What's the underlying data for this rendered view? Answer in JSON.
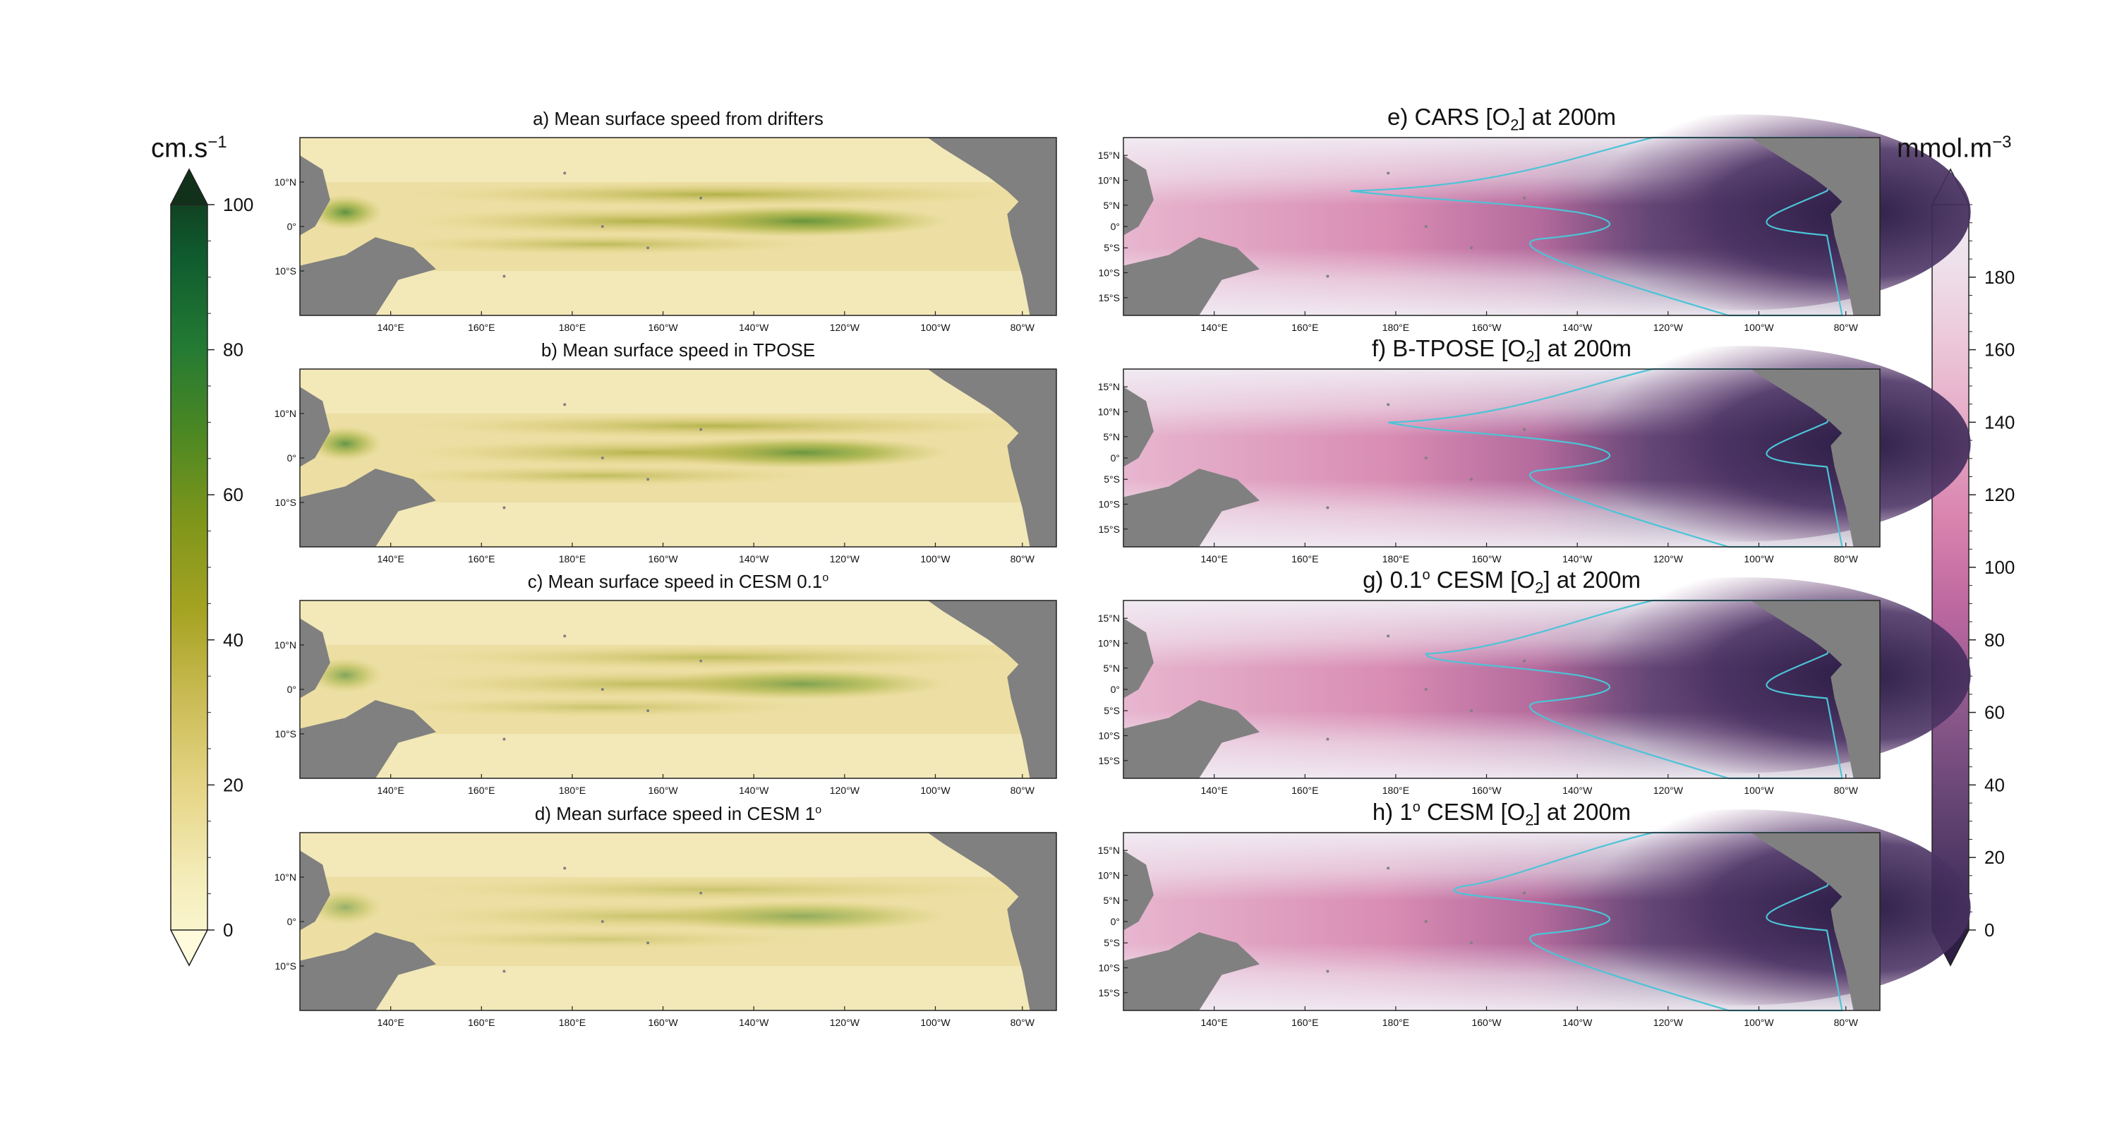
{
  "figure": {
    "colorbar_left": {
      "unit_main": "cm.s",
      "unit_exp": "−1",
      "ticks": [
        "0",
        "20",
        "40",
        "60",
        "80",
        "100"
      ],
      "range": [
        0,
        100
      ],
      "colors": [
        "#fffbdc",
        "#f4ecb9",
        "#e6d586",
        "#cbbc56",
        "#a6a322",
        "#7f961b",
        "#4d8823",
        "#237a33",
        "#0f5c2f",
        "#12311b"
      ]
    },
    "colorbar_right": {
      "unit_main": "mmol.m",
      "unit_exp": "−3",
      "ticks": [
        "0",
        "20",
        "40",
        "60",
        "80",
        "100",
        "120",
        "140",
        "160",
        "180"
      ],
      "range": [
        0,
        200
      ],
      "colors": [
        "#2d1e45",
        "#4a3462",
        "#6b4877",
        "#915a8e",
        "#bb679f",
        "#d882ae",
        "#e4a6c3",
        "#ecc6d8",
        "#eee2ec",
        "#f2f0f6"
      ]
    },
    "lon_labels": [
      "140°E",
      "160°E",
      "180°E",
      "160°W",
      "140°W",
      "120°W",
      "100°W",
      "80°W"
    ],
    "lat_labels_left": [
      "10°N",
      "0°",
      "10°S"
    ],
    "lat_labels_right": [
      "15°N",
      "10°N",
      "5°N",
      "0°",
      "5°S",
      "10°S",
      "15°S"
    ],
    "panels_left": [
      {
        "letter": "a)",
        "title": "Mean surface speed from drifters",
        "deg": ""
      },
      {
        "letter": "b)",
        "title": "Mean surface speed in TPOSE",
        "deg": ""
      },
      {
        "letter": "c)",
        "title": "Mean surface speed in CESM 0.1",
        "deg": "o"
      },
      {
        "letter": "d)",
        "title": "Mean surface speed in CESM 1",
        "deg": "o"
      }
    ],
    "panels_right": [
      {
        "pre": "e) CARS [O",
        "sub": "2",
        "post": "] at 200m",
        "deg": ""
      },
      {
        "pre": "f) B-TPOSE [O",
        "sub": "2",
        "post": "] at 200m",
        "deg": ""
      },
      {
        "pre": "g) 0.1",
        "deg": "o",
        "pre2": " CESM [O",
        "sub": "2",
        "post": "] at 200m"
      },
      {
        "pre": "h) 1",
        "deg": "o",
        "pre2": " CESM  [O",
        "sub": "2",
        "post": "] at 200m"
      }
    ],
    "land_color": "#808080",
    "contour_color": "#4cc4d6"
  }
}
